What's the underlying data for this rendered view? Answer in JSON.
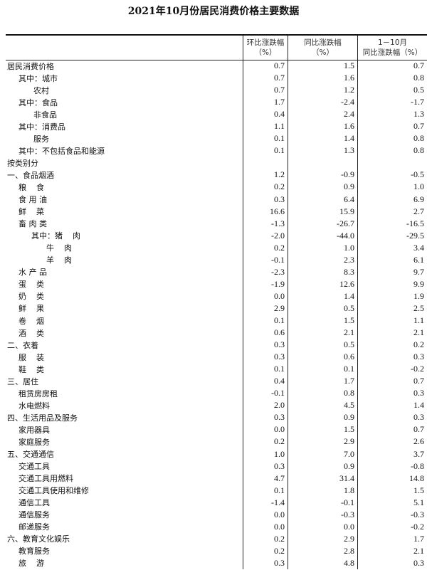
{
  "title": "2021年10月份居民消费价格主要数据",
  "columns": [
    {
      "line1": "环比涨跌幅",
      "line2": "（%）"
    },
    {
      "line1": "同比涨跌幅",
      "line2": "（%）"
    },
    {
      "line1": "1－10月",
      "line2": "同比涨跌幅（%）"
    }
  ],
  "rows": [
    {
      "label": "居民消费价格",
      "indent": 0,
      "values": [
        "0.7",
        "1.5",
        "0.7"
      ]
    },
    {
      "label": "其中：城市",
      "indent": 1,
      "values": [
        "0.7",
        "1.6",
        "0.8"
      ]
    },
    {
      "label": "      农村",
      "indent": 1,
      "values": [
        "0.7",
        "1.2",
        "0.5"
      ]
    },
    {
      "label": "其中：食品",
      "indent": 1,
      "values": [
        "1.7",
        "-2.4",
        "-1.7"
      ]
    },
    {
      "label": "      非食品",
      "indent": 1,
      "values": [
        "0.4",
        "2.4",
        "1.3"
      ]
    },
    {
      "label": "其中：消费品",
      "indent": 1,
      "values": [
        "1.1",
        "1.6",
        "0.7"
      ]
    },
    {
      "label": "      服务",
      "indent": 1,
      "values": [
        "0.1",
        "1.4",
        "0.8"
      ]
    },
    {
      "label": "其中：不包括食品和能源",
      "indent": 1,
      "values": [
        "0.1",
        "1.3",
        "0.8"
      ]
    },
    {
      "label": "按类别分",
      "indent": 0,
      "values": [
        "",
        "",
        ""
      ]
    },
    {
      "label": "一、食品烟酒",
      "indent": 0,
      "values": [
        "1.2",
        "-0.9",
        "-0.5"
      ]
    },
    {
      "label": "粮    食",
      "indent": 1,
      "values": [
        "0.2",
        "0.9",
        "1.0"
      ]
    },
    {
      "label": "食 用 油",
      "indent": 1,
      "values": [
        "0.3",
        "6.4",
        "6.9"
      ]
    },
    {
      "label": "鲜    菜",
      "indent": 1,
      "values": [
        "16.6",
        "15.9",
        "2.7"
      ]
    },
    {
      "label": "畜 肉 类",
      "indent": 1,
      "values": [
        "-1.3",
        "-26.7",
        "-16.5"
      ]
    },
    {
      "label": "其中：猪    肉",
      "indent": 2,
      "values": [
        "-2.0",
        "-44.0",
        "-29.5"
      ]
    },
    {
      "label": "      牛    肉",
      "indent": 2,
      "values": [
        "0.2",
        "1.0",
        "3.4"
      ]
    },
    {
      "label": "      羊    肉",
      "indent": 2,
      "values": [
        "-0.1",
        "2.3",
        "6.1"
      ]
    },
    {
      "label": "水 产 品",
      "indent": 1,
      "values": [
        "-2.3",
        "8.3",
        "9.7"
      ]
    },
    {
      "label": "蛋    类",
      "indent": 1,
      "values": [
        "-1.9",
        "12.6",
        "9.9"
      ]
    },
    {
      "label": "奶    类",
      "indent": 1,
      "values": [
        "0.0",
        "1.4",
        "1.9"
      ]
    },
    {
      "label": "鲜    果",
      "indent": 1,
      "values": [
        "2.9",
        "0.5",
        "2.5"
      ]
    },
    {
      "label": "卷    烟",
      "indent": 1,
      "values": [
        "0.1",
        "1.5",
        "1.1"
      ]
    },
    {
      "label": "酒    类",
      "indent": 1,
      "values": [
        "0.6",
        "2.1",
        "2.1"
      ]
    },
    {
      "label": "二、衣着",
      "indent": 0,
      "values": [
        "0.3",
        "0.5",
        "0.2"
      ]
    },
    {
      "label": "服    装",
      "indent": 1,
      "values": [
        "0.3",
        "0.6",
        "0.3"
      ]
    },
    {
      "label": "鞋    类",
      "indent": 1,
      "values": [
        "0.1",
        "0.1",
        "-0.2"
      ]
    },
    {
      "label": "三、居住",
      "indent": 0,
      "values": [
        "0.4",
        "1.7",
        "0.7"
      ]
    },
    {
      "label": "租赁房房租",
      "indent": 1,
      "values": [
        "-0.1",
        "0.8",
        "0.3"
      ]
    },
    {
      "label": "水电燃料",
      "indent": 1,
      "values": [
        "2.0",
        "4.5",
        "1.4"
      ]
    },
    {
      "label": "四、生活用品及服务",
      "indent": 0,
      "values": [
        "0.3",
        "0.9",
        "0.3"
      ]
    },
    {
      "label": "家用器具",
      "indent": 1,
      "values": [
        "0.0",
        "1.5",
        "0.7"
      ]
    },
    {
      "label": "家庭服务",
      "indent": 1,
      "values": [
        "0.2",
        "2.9",
        "2.6"
      ]
    },
    {
      "label": "五、交通通信",
      "indent": 0,
      "values": [
        "1.0",
        "7.0",
        "3.7"
      ]
    },
    {
      "label": "交通工具",
      "indent": 1,
      "values": [
        "0.3",
        "0.9",
        "-0.8"
      ]
    },
    {
      "label": "交通工具用燃料",
      "indent": 1,
      "values": [
        "4.7",
        "31.4",
        "14.8"
      ]
    },
    {
      "label": "交通工具使用和维修",
      "indent": 1,
      "values": [
        "0.1",
        "1.8",
        "1.5"
      ]
    },
    {
      "label": "通信工具",
      "indent": 1,
      "values": [
        "-1.4",
        "-0.1",
        "5.1"
      ]
    },
    {
      "label": "通信服务",
      "indent": 1,
      "values": [
        "0.0",
        "-0.3",
        "-0.3"
      ]
    },
    {
      "label": "邮递服务",
      "indent": 1,
      "values": [
        "0.0",
        "0.0",
        "-0.2"
      ]
    },
    {
      "label": "六、教育文化娱乐",
      "indent": 0,
      "values": [
        "0.2",
        "2.9",
        "1.7"
      ]
    },
    {
      "label": "教育服务",
      "indent": 1,
      "values": [
        "0.2",
        "2.8",
        "2.1"
      ]
    },
    {
      "label": "旅    游",
      "indent": 1,
      "values": [
        "0.3",
        "4.8",
        "0.3"
      ]
    }
  ]
}
